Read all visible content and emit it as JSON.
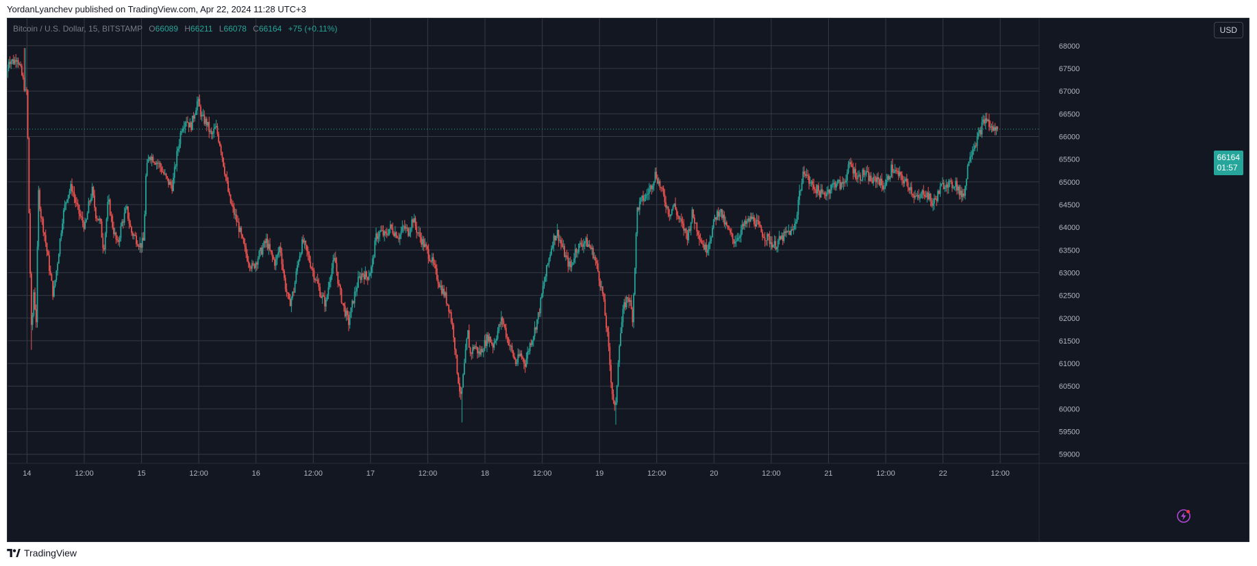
{
  "header": {
    "published_text": "YordanLyanchev published on TradingView.com, Apr 22, 2024 11:28 UTC+3"
  },
  "symbol": {
    "name": "Bitcoin / U.S. Dollar, 15, BITSTAMP",
    "open_label": "O",
    "open": "66089",
    "high_label": "H",
    "high": "66211",
    "low_label": "L",
    "low": "66078",
    "close_label": "C",
    "close": "66164",
    "change": "+75 (+0.11%)"
  },
  "currency_button": "USD",
  "last_price": {
    "price": "66164",
    "countdown": "01:57"
  },
  "footer": {
    "brand": "TradingView"
  },
  "colors": {
    "background": "#131722",
    "grid": "#363a45",
    "up": "#26a69a",
    "down": "#ef5350",
    "axis_text": "#b2b5be",
    "last_price": "#26a69a"
  },
  "chart_data": {
    "type": "candlestick",
    "title": "Bitcoin / U.S. Dollar, 15, BITSTAMP",
    "xlabel": "",
    "ylabel": "",
    "ylim": [
      58800,
      68600
    ],
    "grid": true,
    "y_ticks": [
      59000,
      59500,
      60000,
      60500,
      61000,
      61500,
      62000,
      62500,
      63000,
      63500,
      64000,
      64500,
      65000,
      65500,
      66000,
      66500,
      67000,
      67500,
      68000
    ],
    "x_ticks": [
      {
        "label": "14",
        "day": 1.0
      },
      {
        "label": "12:00",
        "day": 1.5
      },
      {
        "label": "15",
        "day": 2.0
      },
      {
        "label": "12:00",
        "day": 2.5
      },
      {
        "label": "16",
        "day": 3.0
      },
      {
        "label": "12:00",
        "day": 3.5
      },
      {
        "label": "17",
        "day": 4.0
      },
      {
        "label": "12:00",
        "day": 4.5
      },
      {
        "label": "18",
        "day": 5.0
      },
      {
        "label": "12:00",
        "day": 5.5
      },
      {
        "label": "19",
        "day": 6.0
      },
      {
        "label": "12:00",
        "day": 6.5
      },
      {
        "label": "20",
        "day": 7.0
      },
      {
        "label": "12:00",
        "day": 7.5
      },
      {
        "label": "21",
        "day": 8.0
      },
      {
        "label": "12:00",
        "day": 8.5
      },
      {
        "label": "22",
        "day": 9.0
      },
      {
        "label": "12:00",
        "day": 9.5
      }
    ],
    "x_range": [
      0.83,
      9.84
    ],
    "price_path": [
      [
        0.83,
        67300
      ],
      [
        0.85,
        67700
      ],
      [
        0.9,
        67650
      ],
      [
        0.92,
        67800
      ],
      [
        0.95,
        67500
      ],
      [
        0.98,
        67200
      ],
      [
        1.0,
        66900
      ],
      [
        0.99,
        66400
      ],
      [
        1.01,
        67100
      ],
      [
        1.03,
        64000
      ],
      [
        1.05,
        61600
      ],
      [
        1.07,
        62600
      ],
      [
        1.09,
        61900
      ],
      [
        1.11,
        64800
      ],
      [
        1.13,
        64300
      ],
      [
        1.16,
        63900
      ],
      [
        1.2,
        63200
      ],
      [
        1.24,
        62500
      ],
      [
        1.28,
        63300
      ],
      [
        1.32,
        64200
      ],
      [
        1.36,
        64700
      ],
      [
        1.4,
        64900
      ],
      [
        1.44,
        64500
      ],
      [
        1.48,
        64200
      ],
      [
        1.52,
        64000
      ],
      [
        1.55,
        64500
      ],
      [
        1.58,
        64800
      ],
      [
        1.61,
        64300
      ],
      [
        1.65,
        64100
      ],
      [
        1.68,
        63500
      ],
      [
        1.72,
        64600
      ],
      [
        1.76,
        64000
      ],
      [
        1.8,
        63600
      ],
      [
        1.84,
        64100
      ],
      [
        1.88,
        64400
      ],
      [
        1.92,
        63900
      ],
      [
        1.95,
        63800
      ],
      [
        2.0,
        63600
      ],
      [
        2.03,
        63700
      ],
      [
        2.05,
        65200
      ],
      [
        2.08,
        65600
      ],
      [
        2.12,
        65500
      ],
      [
        2.16,
        65400
      ],
      [
        2.2,
        65200
      ],
      [
        2.24,
        65000
      ],
      [
        2.28,
        64900
      ],
      [
        2.32,
        65600
      ],
      [
        2.36,
        66200
      ],
      [
        2.4,
        66400
      ],
      [
        2.44,
        66200
      ],
      [
        2.48,
        66600
      ],
      [
        2.5,
        66800
      ],
      [
        2.54,
        66400
      ],
      [
        2.58,
        66300
      ],
      [
        2.62,
        66000
      ],
      [
        2.66,
        66200
      ],
      [
        2.7,
        65800
      ],
      [
        2.74,
        65200
      ],
      [
        2.78,
        64600
      ],
      [
        2.82,
        64300
      ],
      [
        2.86,
        64000
      ],
      [
        2.9,
        63600
      ],
      [
        2.94,
        63300
      ],
      [
        2.98,
        63100
      ],
      [
        3.02,
        63300
      ],
      [
        3.06,
        63500
      ],
      [
        3.1,
        63700
      ],
      [
        3.14,
        63400
      ],
      [
        3.18,
        63200
      ],
      [
        3.22,
        63600
      ],
      [
        3.26,
        62800
      ],
      [
        3.3,
        62300
      ],
      [
        3.34,
        62600
      ],
      [
        3.38,
        63300
      ],
      [
        3.42,
        63700
      ],
      [
        3.46,
        63400
      ],
      [
        3.5,
        63100
      ],
      [
        3.54,
        62800
      ],
      [
        3.58,
        62500
      ],
      [
        3.62,
        62300
      ],
      [
        3.66,
        63000
      ],
      [
        3.7,
        63300
      ],
      [
        3.74,
        62600
      ],
      [
        3.78,
        62200
      ],
      [
        3.82,
        61900
      ],
      [
        3.86,
        62400
      ],
      [
        3.9,
        62800
      ],
      [
        3.94,
        63000
      ],
      [
        3.98,
        62900
      ],
      [
        4.02,
        63100
      ],
      [
        4.06,
        63800
      ],
      [
        4.1,
        63900
      ],
      [
        4.14,
        63800
      ],
      [
        4.18,
        64000
      ],
      [
        4.22,
        63900
      ],
      [
        4.26,
        63800
      ],
      [
        4.3,
        64000
      ],
      [
        4.34,
        63900
      ],
      [
        4.38,
        64200
      ],
      [
        4.42,
        63900
      ],
      [
        4.46,
        63700
      ],
      [
        4.5,
        63500
      ],
      [
        4.54,
        63300
      ],
      [
        4.58,
        63000
      ],
      [
        4.62,
        62700
      ],
      [
        4.66,
        62500
      ],
      [
        4.7,
        62200
      ],
      [
        4.74,
        61600
      ],
      [
        4.76,
        61000
      ],
      [
        4.78,
        60600
      ],
      [
        4.8,
        60200
      ],
      [
        4.82,
        60700
      ],
      [
        4.84,
        61200
      ],
      [
        4.86,
        61700
      ],
      [
        4.88,
        61200
      ],
      [
        4.92,
        61400
      ],
      [
        4.96,
        61200
      ],
      [
        5.0,
        61400
      ],
      [
        5.04,
        61600
      ],
      [
        5.08,
        61400
      ],
      [
        5.12,
        61700
      ],
      [
        5.16,
        62000
      ],
      [
        5.2,
        61600
      ],
      [
        5.24,
        61300
      ],
      [
        5.28,
        61000
      ],
      [
        5.32,
        61200
      ],
      [
        5.36,
        61000
      ],
      [
        5.4,
        61400
      ],
      [
        5.44,
        61700
      ],
      [
        5.48,
        62100
      ],
      [
        5.52,
        62700
      ],
      [
        5.56,
        63200
      ],
      [
        5.6,
        63700
      ],
      [
        5.64,
        63900
      ],
      [
        5.68,
        63600
      ],
      [
        5.72,
        63300
      ],
      [
        5.76,
        63100
      ],
      [
        5.8,
        63500
      ],
      [
        5.84,
        63600
      ],
      [
        5.88,
        63700
      ],
      [
        5.92,
        63600
      ],
      [
        5.96,
        63400
      ],
      [
        6.0,
        63000
      ],
      [
        6.04,
        62500
      ],
      [
        6.08,
        61600
      ],
      [
        6.12,
        60400
      ],
      [
        6.15,
        59900
      ],
      [
        6.18,
        61400
      ],
      [
        6.22,
        62200
      ],
      [
        6.26,
        62500
      ],
      [
        6.28,
        62300
      ],
      [
        6.3,
        62000
      ],
      [
        6.32,
        63200
      ],
      [
        6.34,
        64400
      ],
      [
        6.38,
        64600
      ],
      [
        6.42,
        64700
      ],
      [
        6.46,
        64900
      ],
      [
        6.5,
        65200
      ],
      [
        6.54,
        64900
      ],
      [
        6.58,
        64600
      ],
      [
        6.62,
        64300
      ],
      [
        6.66,
        64500
      ],
      [
        6.7,
        64200
      ],
      [
        6.74,
        64000
      ],
      [
        6.78,
        63800
      ],
      [
        6.82,
        64300
      ],
      [
        6.86,
        64000
      ],
      [
        6.9,
        63700
      ],
      [
        6.94,
        63500
      ],
      [
        6.98,
        63800
      ],
      [
        7.02,
        64200
      ],
      [
        7.06,
        64400
      ],
      [
        7.1,
        64100
      ],
      [
        7.14,
        63900
      ],
      [
        7.18,
        63700
      ],
      [
        7.22,
        63800
      ],
      [
        7.26,
        64000
      ],
      [
        7.3,
        64100
      ],
      [
        7.34,
        64200
      ],
      [
        7.38,
        64100
      ],
      [
        7.42,
        63900
      ],
      [
        7.46,
        63800
      ],
      [
        7.5,
        63700
      ],
      [
        7.54,
        63600
      ],
      [
        7.58,
        63700
      ],
      [
        7.62,
        63800
      ],
      [
        7.66,
        63900
      ],
      [
        7.7,
        63900
      ],
      [
        7.73,
        64200
      ],
      [
        7.75,
        64700
      ],
      [
        7.78,
        65000
      ],
      [
        7.8,
        65300
      ],
      [
        7.84,
        65000
      ],
      [
        7.88,
        64900
      ],
      [
        7.92,
        64800
      ],
      [
        7.96,
        64700
      ],
      [
        8.0,
        64800
      ],
      [
        8.04,
        64900
      ],
      [
        8.08,
        65000
      ],
      [
        8.12,
        64900
      ],
      [
        8.16,
        65100
      ],
      [
        8.2,
        65400
      ],
      [
        8.24,
        65200
      ],
      [
        8.28,
        65100
      ],
      [
        8.32,
        65200
      ],
      [
        8.36,
        65100
      ],
      [
        8.4,
        65000
      ],
      [
        8.44,
        65100
      ],
      [
        8.48,
        64900
      ],
      [
        8.52,
        65000
      ],
      [
        8.56,
        65300
      ],
      [
        8.6,
        65200
      ],
      [
        8.64,
        65100
      ],
      [
        8.68,
        65000
      ],
      [
        8.72,
        64900
      ],
      [
        8.76,
        64700
      ],
      [
        8.8,
        64600
      ],
      [
        8.84,
        64800
      ],
      [
        8.88,
        64700
      ],
      [
        8.92,
        64500
      ],
      [
        8.96,
        64700
      ],
      [
        9.0,
        64900
      ],
      [
        9.04,
        65000
      ],
      [
        9.08,
        64900
      ],
      [
        9.12,
        65000
      ],
      [
        9.16,
        64700
      ],
      [
        9.2,
        64800
      ],
      [
        9.24,
        65600
      ],
      [
        9.28,
        65800
      ],
      [
        9.32,
        66000
      ],
      [
        9.36,
        66300
      ],
      [
        9.39,
        66400
      ],
      [
        9.42,
        66200
      ],
      [
        9.46,
        66150
      ],
      [
        9.48,
        66164
      ]
    ],
    "notable_extremes": [
      {
        "day": 0.98,
        "high": 67950
      },
      {
        "day": 1.04,
        "low": 61300
      },
      {
        "day": 2.5,
        "high": 66880
      },
      {
        "day": 4.8,
        "low": 59700
      },
      {
        "day": 6.14,
        "low": 59650
      },
      {
        "day": 9.4,
        "high": 66500
      }
    ]
  }
}
